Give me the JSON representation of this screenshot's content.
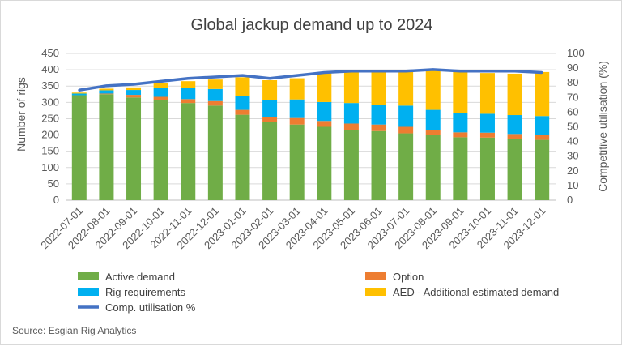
{
  "chart_data": {
    "type": "bar",
    "title": "Global jackup demand up to 2024",
    "ylabel": "Number of rigs",
    "y2label": "Competitive utilisation (%)",
    "ylim": [
      0,
      450
    ],
    "y2lim": [
      0,
      100
    ],
    "yticks": [
      "0",
      "50",
      "100",
      "150",
      "200",
      "250",
      "300",
      "350",
      "400",
      "450"
    ],
    "y2ticks": [
      "0",
      "10",
      "20",
      "30",
      "40",
      "50",
      "60",
      "70",
      "80",
      "90",
      "100"
    ],
    "categories": [
      "2022-07-01",
      "2022-08-01",
      "2022-09-01",
      "2022-10-01",
      "2022-11-01",
      "2022-12-01",
      "2023-01-01",
      "2023-02-01",
      "2023-03-01",
      "2023-04-01",
      "2023-05-01",
      "2023-06-01",
      "2023-07-01",
      "2023-08-01",
      "2023-09-01",
      "2023-10-01",
      "2023-11-01",
      "2023-12-01"
    ],
    "series": [
      {
        "name": "Active demand",
        "kind": "bar",
        "color": "#70ad47",
        "values": [
          322,
          325,
          315,
          307,
          298,
          290,
          262,
          240,
          232,
          225,
          215,
          212,
          205,
          200,
          193,
          192,
          188,
          185
        ]
      },
      {
        "name": "Option",
        "kind": "bar",
        "color": "#ed7d31",
        "values": [
          0,
          2,
          8,
          10,
          12,
          14,
          15,
          16,
          20,
          18,
          20,
          20,
          20,
          15,
          15,
          15,
          15,
          15
        ]
      },
      {
        "name": "Rig requirements",
        "kind": "bar",
        "color": "#00b0f0",
        "values": [
          5,
          10,
          15,
          27,
          35,
          37,
          42,
          50,
          57,
          58,
          63,
          60,
          65,
          62,
          60,
          58,
          58,
          58
        ]
      },
      {
        "name": "AED - Additional estimated demand",
        "kind": "bar",
        "color": "#ffc000",
        "values": [
          3,
          5,
          8,
          14,
          20,
          29,
          58,
          62,
          65,
          89,
          95,
          101,
          103,
          120,
          125,
          125,
          127,
          135
        ]
      },
      {
        "name": "Comp. utilisation %",
        "kind": "line",
        "axis": "right",
        "color": "#4472c4",
        "values": [
          75,
          78,
          79,
          81,
          83,
          84,
          85,
          83,
          85,
          87,
          88,
          88,
          88,
          89,
          88,
          88,
          88,
          87
        ]
      }
    ],
    "legend_position": "bottom",
    "grid": true
  },
  "source": "Source: Esgian Rig Analytics"
}
